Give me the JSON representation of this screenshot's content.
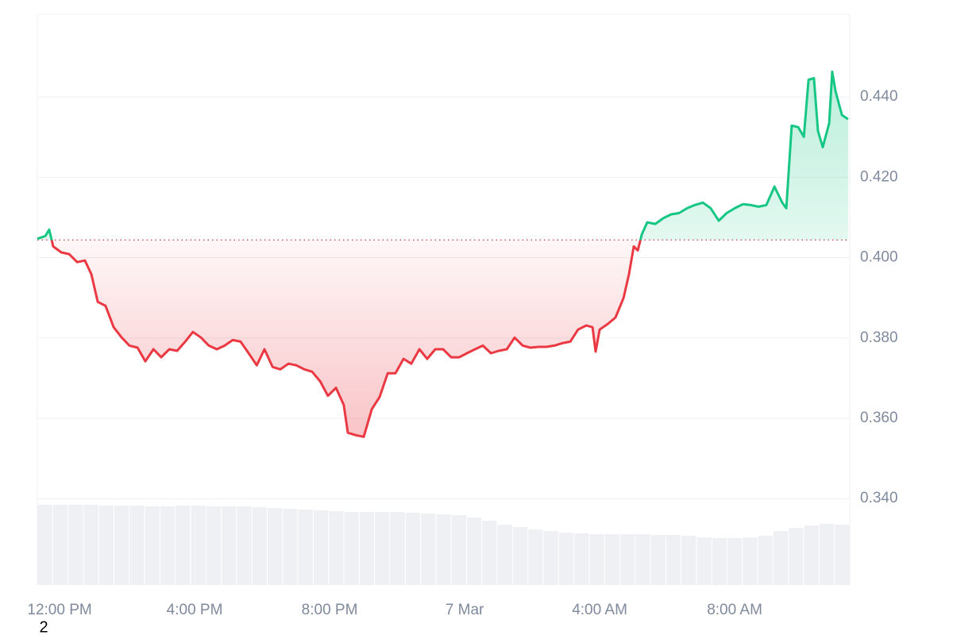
{
  "chart_data": {
    "type": "line",
    "x": [
      -0.66,
      -0.42,
      -0.31,
      -0.19,
      0.05,
      0.28,
      0.52,
      0.75,
      0.94,
      1.13,
      1.36,
      1.6,
      1.84,
      2.07,
      2.31,
      2.54,
      2.78,
      3.01,
      3.25,
      3.48,
      3.72,
      3.95,
      4.19,
      4.42,
      4.66,
      4.89,
      5.13,
      5.36,
      5.6,
      5.84,
      6.07,
      6.31,
      6.54,
      6.78,
      7.01,
      7.25,
      7.48,
      7.72,
      7.95,
      8.19,
      8.42,
      8.54,
      8.78,
      9.01,
      9.25,
      9.48,
      9.72,
      9.95,
      10.19,
      10.42,
      10.66,
      10.89,
      11.13,
      11.36,
      11.6,
      11.84,
      12.07,
      12.31,
      12.54,
      12.78,
      13.01,
      13.25,
      13.48,
      13.72,
      13.95,
      14.19,
      14.42,
      14.66,
      14.89,
      15.13,
      15.36,
      15.6,
      15.79,
      15.88,
      16,
      16.24,
      16.47,
      16.71,
      16.87,
      17.01,
      17.13,
      17.25,
      17.41,
      17.65,
      17.88,
      18.12,
      18.35,
      18.59,
      18.82,
      19.06,
      19.29,
      19.53,
      19.76,
      20,
      20.24,
      20.47,
      20.71,
      20.94,
      21.18,
      21.41,
      21.53,
      21.69,
      21.88,
      22.05,
      22.19,
      22.35,
      22.47,
      22.61,
      22.8,
      22.89,
      22.99,
      23.18,
      23.36
    ],
    "values": [
      0.4047,
      0.4054,
      0.407,
      0.4028,
      0.4013,
      0.4009,
      0.3989,
      0.3993,
      0.3959,
      0.389,
      0.388,
      0.3827,
      0.3801,
      0.3781,
      0.3776,
      0.3742,
      0.3772,
      0.3752,
      0.3772,
      0.3768,
      0.3791,
      0.3815,
      0.3801,
      0.3781,
      0.3772,
      0.3781,
      0.3795,
      0.3791,
      0.3762,
      0.3732,
      0.3772,
      0.3728,
      0.3722,
      0.3736,
      0.3732,
      0.3722,
      0.3716,
      0.3692,
      0.3656,
      0.3676,
      0.3633,
      0.3564,
      0.3558,
      0.3554,
      0.3623,
      0.3653,
      0.3712,
      0.3712,
      0.3748,
      0.3736,
      0.3772,
      0.3748,
      0.3772,
      0.3772,
      0.3752,
      0.3752,
      0.3762,
      0.3772,
      0.3781,
      0.3762,
      0.3768,
      0.3772,
      0.3801,
      0.3781,
      0.3776,
      0.3778,
      0.3778,
      0.3781,
      0.3787,
      0.3791,
      0.3821,
      0.3831,
      0.3827,
      0.3766,
      0.3821,
      0.3835,
      0.3851,
      0.39,
      0.3959,
      0.4028,
      0.4018,
      0.4058,
      0.4088,
      0.4084,
      0.4098,
      0.4108,
      0.4111,
      0.4123,
      0.4131,
      0.4137,
      0.4123,
      0.4092,
      0.4111,
      0.4123,
      0.4133,
      0.4131,
      0.4127,
      0.4131,
      0.4177,
      0.4137,
      0.4123,
      0.4329,
      0.4325,
      0.4301,
      0.4443,
      0.4447,
      0.4315,
      0.4275,
      0.4335,
      0.4463,
      0.4414,
      0.4355,
      0.4345
    ],
    "baseline": 0.4044,
    "up_color": "#16c784",
    "down_color": "#ea3943",
    "volume": {
      "color": "#eef0f3",
      "values": [
        101,
        101,
        101,
        101,
        100,
        100,
        100,
        99,
        99,
        100,
        100,
        99,
        99,
        99,
        98,
        97,
        96,
        95,
        94,
        93,
        92,
        92,
        92,
        92,
        91,
        90,
        89,
        88,
        85,
        81,
        76,
        73,
        70,
        68,
        66,
        65,
        64,
        64,
        64,
        64,
        63,
        63,
        62,
        60,
        59,
        59,
        60,
        62,
        68,
        72,
        75,
        77,
        76
      ]
    },
    "xlim": [
      -0.66,
      23.41
    ],
    "xticks": [
      {
        "value": 0,
        "label": "12:00 PM"
      },
      {
        "value": 4,
        "label": "4:00 PM"
      },
      {
        "value": 8,
        "label": "8:00 PM"
      },
      {
        "value": 12,
        "label": "7 Mar"
      },
      {
        "value": 16,
        "label": "4:00 AM"
      },
      {
        "value": 20,
        "label": "8:00 AM"
      }
    ],
    "ylim": [
      0.3185,
      0.4606
    ],
    "yticks": [
      {
        "value": 0.34,
        "label": "0.340"
      },
      {
        "value": 0.36,
        "label": "0.360"
      },
      {
        "value": 0.38,
        "label": "0.380"
      },
      {
        "value": 0.4,
        "label": "0.400"
      },
      {
        "value": 0.42,
        "label": "0.420"
      },
      {
        "value": 0.44,
        "label": "0.440"
      }
    ],
    "grid": true,
    "annotation": "2"
  }
}
